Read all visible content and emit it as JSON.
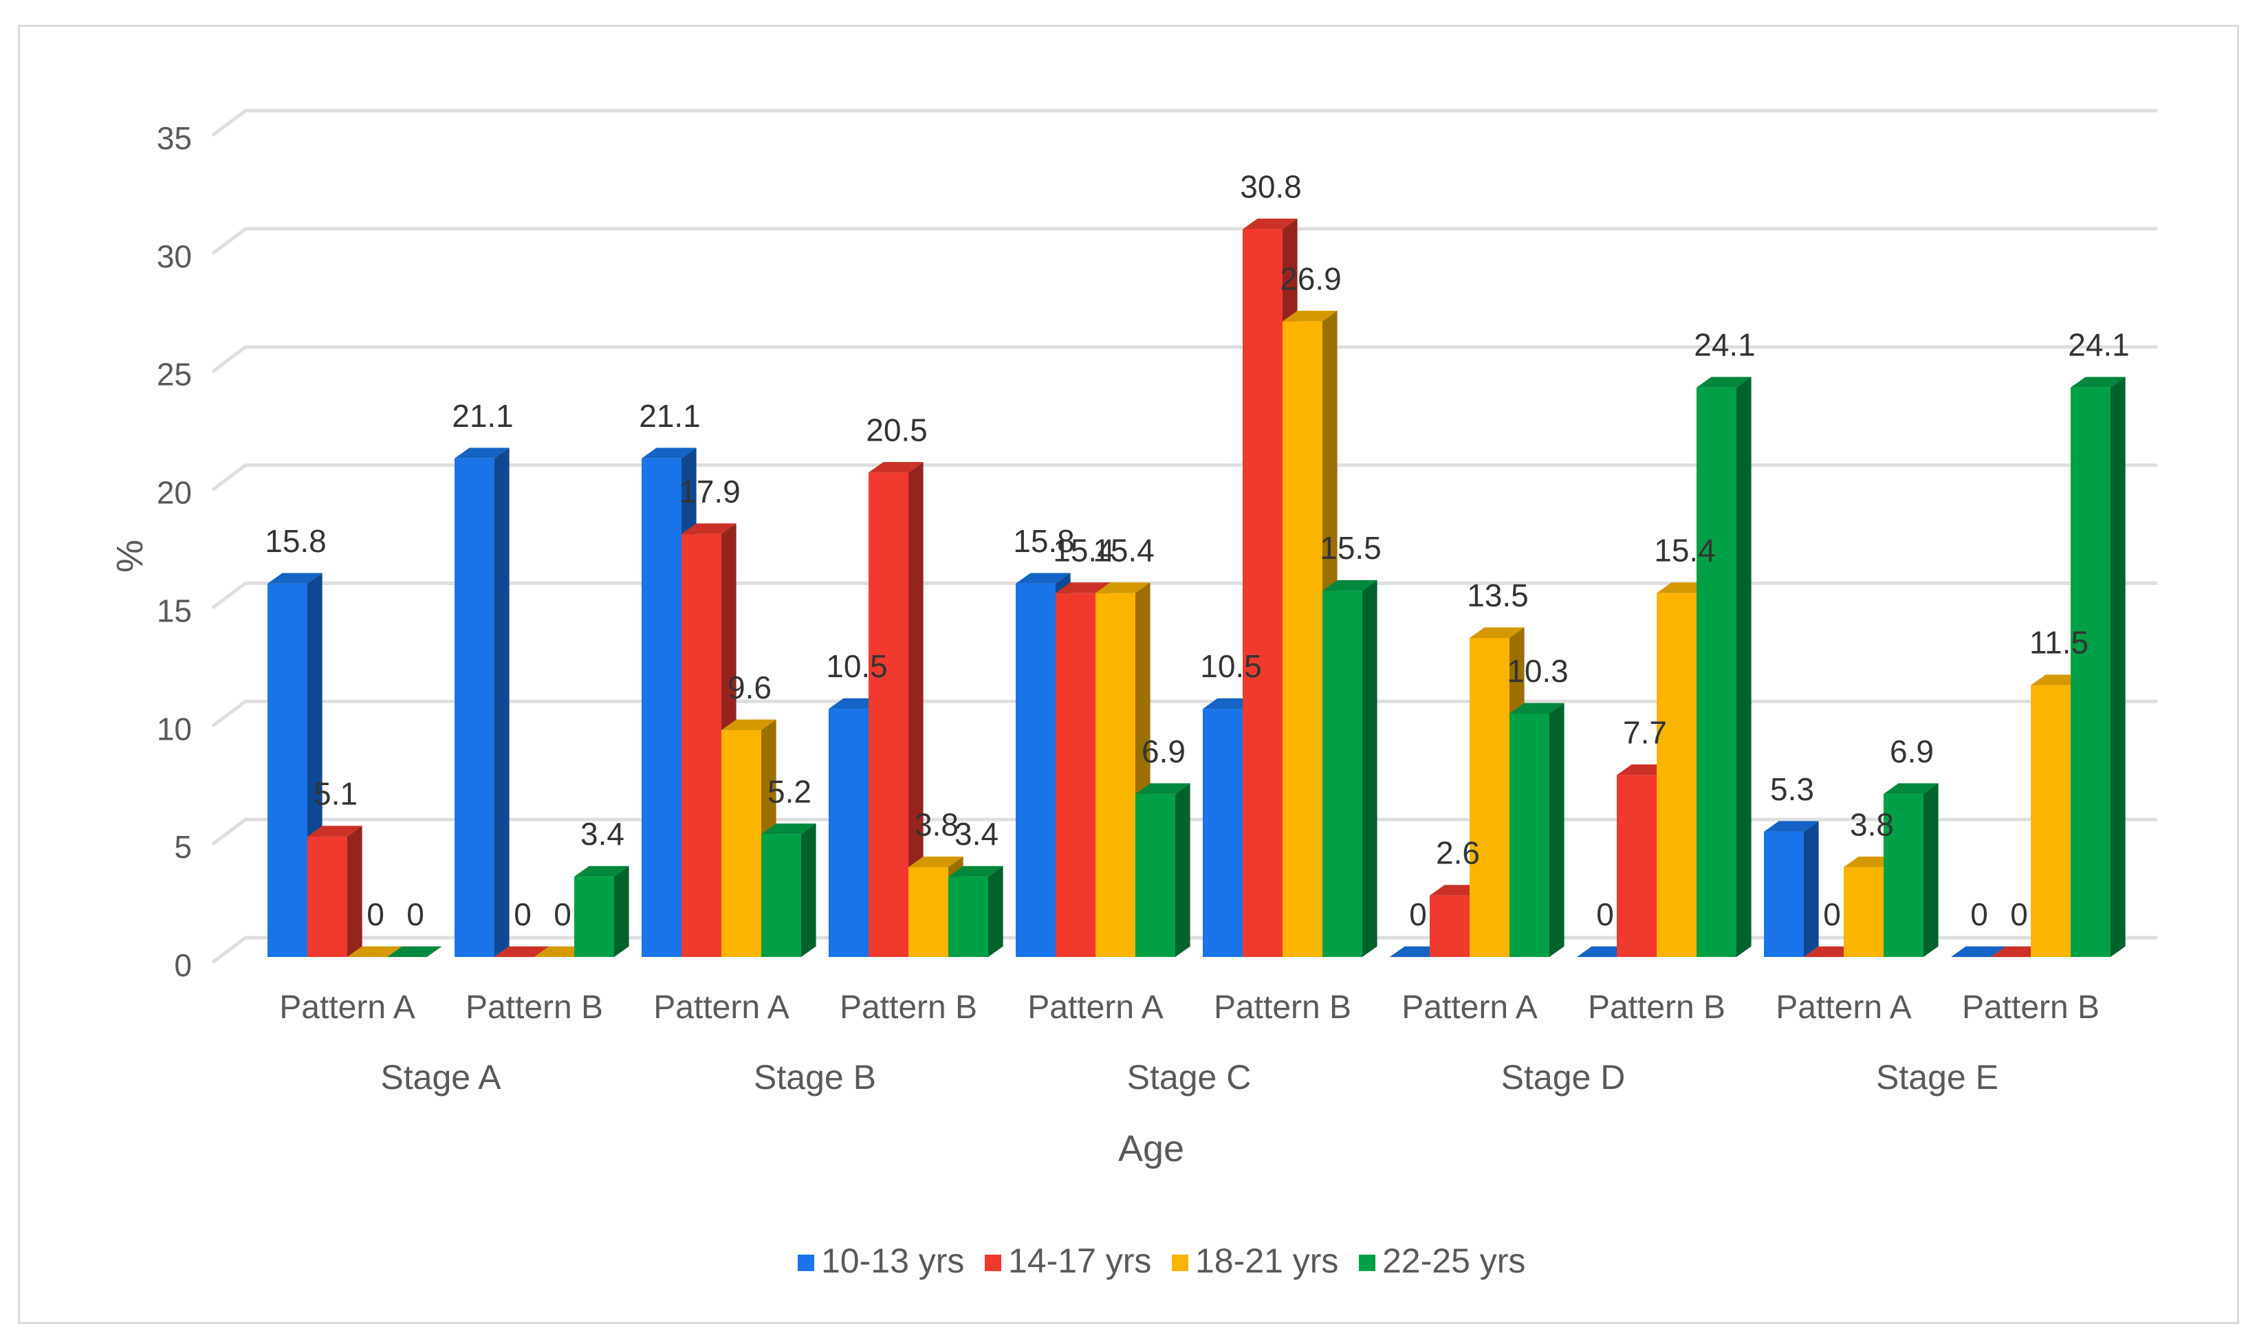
{
  "chart_data": {
    "type": "bar",
    "style": "3d-clustered-column",
    "title": "",
    "xlabel": "Age",
    "ylabel": "%",
    "ylim": [
      0,
      35
    ],
    "yticks": [
      0,
      5,
      10,
      15,
      20,
      25,
      30,
      35
    ],
    "grid": true,
    "legend_position": "bottom",
    "groups": [
      "Stage A",
      "Stage B",
      "Stage C",
      "Stage D",
      "Stage E"
    ],
    "categories": [
      "Pattern A",
      "Pattern B",
      "Pattern A",
      "Pattern B",
      "Pattern A",
      "Pattern B",
      "Pattern A",
      "Pattern B",
      "Pattern A",
      "Pattern B"
    ],
    "series": [
      {
        "name": "10-13 yrs",
        "color": "#1874e8",
        "values": [
          15.8,
          21.1,
          21.1,
          10.5,
          15.8,
          10.5,
          0,
          0,
          5.3,
          0
        ]
      },
      {
        "name": "14-17 yrs",
        "color": "#f03a2e",
        "values": [
          5.1,
          0,
          17.9,
          20.5,
          15.4,
          30.8,
          2.6,
          7.7,
          0,
          0
        ]
      },
      {
        "name": "18-21 yrs",
        "color": "#fbb400",
        "values": [
          0,
          0,
          9.6,
          3.8,
          15.4,
          26.9,
          13.5,
          15.4,
          3.8,
          11.5
        ]
      },
      {
        "name": "22-25 yrs",
        "color": "#00a046",
        "values": [
          0,
          3.4,
          5.2,
          3.4,
          6.9,
          15.5,
          10.3,
          24.1,
          6.9,
          24.1
        ]
      }
    ]
  }
}
